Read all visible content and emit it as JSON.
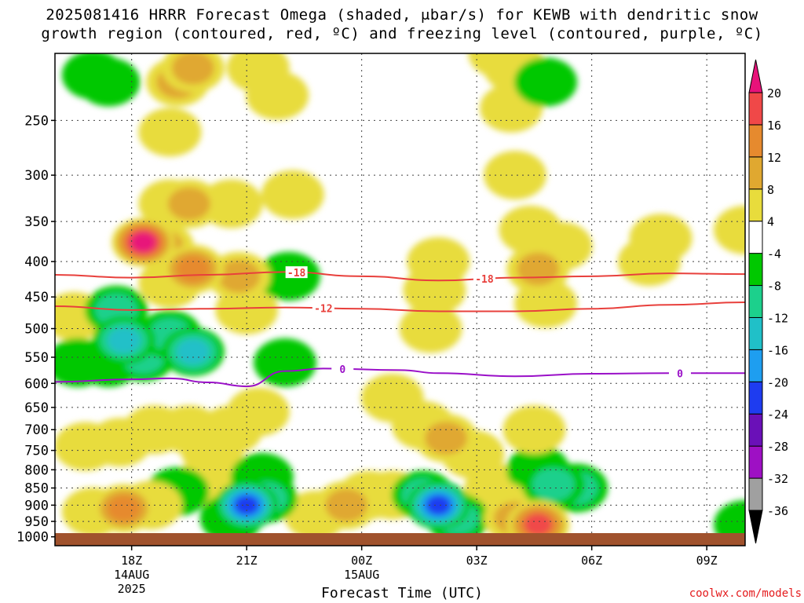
{
  "title_line1": "2025081416 HRRR Forecast Omega (shaded, μbar/s) for KEWB with dendritic snow",
  "title_line2": "growth region (contoured, red, ºC) and freezing level (contoured, purple, ºC)",
  "xlabel": "Forecast Time (UTC)",
  "credit": "coolwx.com/models",
  "chart_data": {
    "type": "heatmap",
    "title": "2025081416 HRRR Forecast Omega (shaded, μbar/s) for KEWB with dendritic snow growth region (contoured, red, ºC) and freezing level (contoured, purple, ºC)",
    "xlabel": "Forecast Time (UTC)",
    "ylabel": "",
    "x_unit": "hours since 2025-08-14 16Z",
    "xlim": [
      0,
      18
    ],
    "x_ticks": [
      {
        "x": 2,
        "label": "18Z",
        "sub1": "14AUG",
        "sub2": "2025"
      },
      {
        "x": 5,
        "label": "21Z",
        "sub1": "",
        "sub2": ""
      },
      {
        "x": 8,
        "label": "00Z",
        "sub1": "15AUG",
        "sub2": ""
      },
      {
        "x": 11,
        "label": "03Z",
        "sub1": "",
        "sub2": ""
      },
      {
        "x": 14,
        "label": "06Z",
        "sub1": "",
        "sub2": ""
      },
      {
        "x": 17,
        "label": "09Z",
        "sub1": "",
        "sub2": ""
      }
    ],
    "y_unit": "hPa",
    "y_scale": "log",
    "ylim": [
      1030,
      200
    ],
    "y_ticks": [
      250,
      300,
      350,
      400,
      450,
      500,
      550,
      600,
      650,
      700,
      750,
      800,
      850,
      900,
      950,
      1000
    ],
    "grid": true,
    "colorbar": {
      "unit": "μbar/s",
      "levels": [
        -36,
        -32,
        -28,
        -24,
        -20,
        -16,
        -12,
        -8,
        -4,
        4,
        8,
        12,
        16,
        20
      ],
      "colors": [
        "#000000",
        "#a0a0a0",
        "#9e10c4",
        "#6a10b8",
        "#1e3cf0",
        "#1e9ef0",
        "#20c0c8",
        "#1cd08c",
        "#00c800",
        "#ffffff",
        "#e8dc3c",
        "#e0a830",
        "#e68a2e",
        "#f04848",
        "#e8127a"
      ]
    },
    "omega_cells": [
      {
        "t": 3.0,
        "p": 330,
        "v": 7
      },
      {
        "t": 3.0,
        "p": 260,
        "v": 5
      },
      {
        "t": 3.2,
        "p": 220,
        "v": 8
      },
      {
        "t": 3.6,
        "p": 210,
        "v": 10
      },
      {
        "t": 2.8,
        "p": 380,
        "v": 10
      },
      {
        "t": 3.5,
        "p": 330,
        "v": 9
      },
      {
        "t": 3.0,
        "p": 430,
        "v": 6
      },
      {
        "t": 2.3,
        "p": 375,
        "v": 20
      },
      {
        "t": 3.6,
        "p": 410,
        "v": 12
      },
      {
        "t": 4.6,
        "p": 330,
        "v": 6
      },
      {
        "t": 4.8,
        "p": 420,
        "v": 8
      },
      {
        "t": 5.0,
        "p": 470,
        "v": 5
      },
      {
        "t": 5.3,
        "p": 210,
        "v": 7
      },
      {
        "t": 5.8,
        "p": 230,
        "v": 5
      },
      {
        "t": 6.2,
        "p": 320,
        "v": 5
      },
      {
        "t": 1.4,
        "p": 220,
        "v": -6
      },
      {
        "t": 1.0,
        "p": 215,
        "v": -4
      },
      {
        "t": 1.8,
        "p": 520,
        "v": -14
      },
      {
        "t": 1.6,
        "p": 470,
        "v": -8
      },
      {
        "t": 2.3,
        "p": 550,
        "v": -10
      },
      {
        "t": 3.6,
        "p": 540,
        "v": -13
      },
      {
        "t": 3.0,
        "p": 510,
        "v": -10
      },
      {
        "t": 1.4,
        "p": 560,
        "v": -6
      },
      {
        "t": 0.5,
        "p": 480,
        "v": 5
      },
      {
        "t": 0.6,
        "p": 560,
        "v": -6
      },
      {
        "t": 6.0,
        "p": 560,
        "v": -6
      },
      {
        "t": 6.1,
        "p": 420,
        "v": -5
      },
      {
        "t": 9.9,
        "p": 440,
        "v": 6
      },
      {
        "t": 10.0,
        "p": 400,
        "v": 5
      },
      {
        "t": 9.8,
        "p": 500,
        "v": 4
      },
      {
        "t": 11.9,
        "p": 240,
        "v": 4
      },
      {
        "t": 12.0,
        "p": 300,
        "v": 5
      },
      {
        "t": 12.4,
        "p": 360,
        "v": 7
      },
      {
        "t": 12.6,
        "p": 410,
        "v": 8
      },
      {
        "t": 12.8,
        "p": 460,
        "v": 5
      },
      {
        "t": 13.2,
        "p": 380,
        "v": 5
      },
      {
        "t": 12.0,
        "p": 210,
        "v": 4
      },
      {
        "t": 12.8,
        "p": 220,
        "v": -6
      },
      {
        "t": 11.6,
        "p": 200,
        "v": 4
      },
      {
        "t": 15.5,
        "p": 400,
        "v": 5
      },
      {
        "t": 15.8,
        "p": 370,
        "v": 5
      },
      {
        "t": 18.0,
        "p": 360,
        "v": 5
      },
      {
        "t": 1.7,
        "p": 730,
        "v": 6
      },
      {
        "t": 0.8,
        "p": 740,
        "v": 5
      },
      {
        "t": 2.6,
        "p": 700,
        "v": 5
      },
      {
        "t": 3.5,
        "p": 700,
        "v": 4
      },
      {
        "t": 4.1,
        "p": 750,
        "v": 6
      },
      {
        "t": 4.0,
        "p": 830,
        "v": 6
      },
      {
        "t": 4.6,
        "p": 700,
        "v": 5
      },
      {
        "t": 5.3,
        "p": 660,
        "v": 5
      },
      {
        "t": 1.8,
        "p": 910,
        "v": 14
      },
      {
        "t": 1.0,
        "p": 920,
        "v": 6
      },
      {
        "t": 2.5,
        "p": 900,
        "v": 7
      },
      {
        "t": 5.0,
        "p": 900,
        "v": -20
      },
      {
        "t": 5.5,
        "p": 880,
        "v": -10
      },
      {
        "t": 4.6,
        "p": 940,
        "v": -7
      },
      {
        "t": 5.4,
        "p": 820,
        "v": -7
      },
      {
        "t": 3.2,
        "p": 860,
        "v": -6
      },
      {
        "t": 7.6,
        "p": 900,
        "v": 9
      },
      {
        "t": 8.2,
        "p": 870,
        "v": 7
      },
      {
        "t": 6.8,
        "p": 930,
        "v": 6
      },
      {
        "t": 8.8,
        "p": 870,
        "v": 5
      },
      {
        "t": 8.8,
        "p": 630,
        "v": 4
      },
      {
        "t": 10.2,
        "p": 720,
        "v": 8
      },
      {
        "t": 9.6,
        "p": 690,
        "v": 5
      },
      {
        "t": 10.9,
        "p": 760,
        "v": 5
      },
      {
        "t": 11.5,
        "p": 850,
        "v": 5
      },
      {
        "t": 10.0,
        "p": 900,
        "v": -20
      },
      {
        "t": 9.6,
        "p": 870,
        "v": -10
      },
      {
        "t": 10.5,
        "p": 940,
        "v": -8
      },
      {
        "t": 12.0,
        "p": 940,
        "v": 10
      },
      {
        "t": 12.6,
        "p": 960,
        "v": 18
      },
      {
        "t": 11.6,
        "p": 900,
        "v": 6
      },
      {
        "t": 13.0,
        "p": 840,
        "v": -10
      },
      {
        "t": 13.6,
        "p": 850,
        "v": -9
      },
      {
        "t": 12.6,
        "p": 800,
        "v": -5
      },
      {
        "t": 12.5,
        "p": 700,
        "v": 5
      },
      {
        "t": 18.0,
        "p": 960,
        "v": -5
      }
    ],
    "contours": [
      {
        "name": "-18",
        "color": "#e8403c",
        "label_at": 6.3,
        "points": [
          [
            0,
            418
          ],
          [
            2,
            422
          ],
          [
            4,
            418
          ],
          [
            6,
            414
          ],
          [
            8,
            420
          ],
          [
            10,
            426
          ],
          [
            12,
            422
          ],
          [
            14,
            420
          ],
          [
            16,
            416
          ],
          [
            18,
            417
          ]
        ]
      },
      {
        "name": "-12",
        "color": "#e8403c",
        "label_at": 7.0,
        "points": [
          [
            0,
            464
          ],
          [
            2,
            470
          ],
          [
            4,
            468
          ],
          [
            6,
            466
          ],
          [
            8,
            468
          ],
          [
            10,
            472
          ],
          [
            12,
            472
          ],
          [
            14,
            468
          ],
          [
            16,
            462
          ],
          [
            18,
            458
          ]
        ]
      },
      {
        "name": "0",
        "color": "#9a10c8",
        "label_at": 7.5,
        "points": [
          [
            0,
            597
          ],
          [
            2,
            592
          ],
          [
            3,
            590
          ],
          [
            4,
            598
          ],
          [
            5,
            606
          ],
          [
            6,
            576
          ],
          [
            7,
            571
          ],
          [
            9,
            574
          ],
          [
            10,
            580
          ],
          [
            12,
            586
          ],
          [
            14,
            581
          ],
          [
            16,
            580
          ],
          [
            18,
            580
          ]
        ]
      }
    ]
  }
}
